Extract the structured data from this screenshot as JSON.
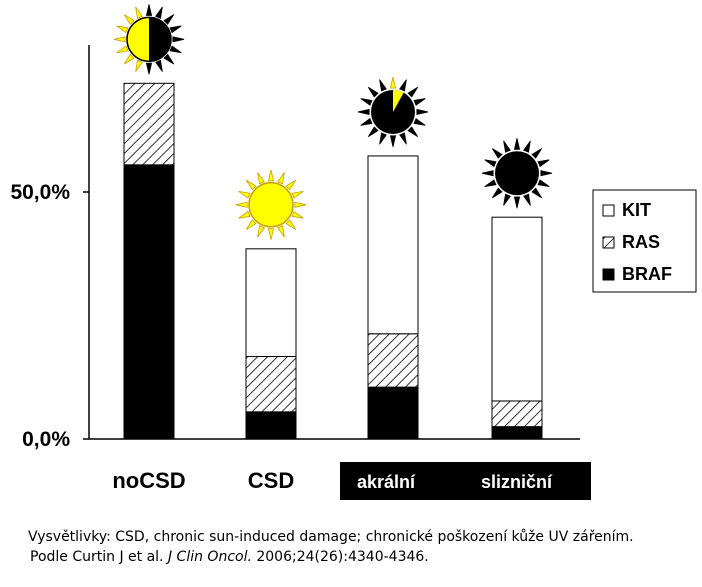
{
  "chart_data": {
    "type": "bar",
    "stacked": true,
    "categories": [
      "noCSD",
      "CSD",
      "akrální",
      "slizniční"
    ],
    "category_label_style": [
      "plain",
      "plain",
      "inverted-box",
      "inverted-box"
    ],
    "series": [
      {
        "name": "BRAF",
        "pattern": "solid-black",
        "values": [
          55.5,
          5.5,
          10.5,
          2.5
        ]
      },
      {
        "name": "RAS",
        "pattern": "hatched",
        "values": [
          16.5,
          11.2,
          10.8,
          5.2
        ]
      },
      {
        "name": "KIT",
        "pattern": "white",
        "values": [
          0,
          21.8,
          36.0,
          37.2
        ]
      }
    ],
    "yticks": [
      "0,0%",
      "50,0%"
    ],
    "ytick_values": [
      0,
      50
    ],
    "ylim": [
      0,
      100
    ],
    "legend": {
      "position": "right",
      "order": [
        "KIT",
        "RAS",
        "BRAF"
      ]
    },
    "grid": false,
    "sun_icons": [
      {
        "category": "noCSD",
        "icon": "sun-icon",
        "sun_fraction": 0.5
      },
      {
        "category": "CSD",
        "icon": "sun-icon",
        "sun_fraction": 1.0
      },
      {
        "category": "akrální",
        "icon": "sun-icon",
        "sun_fraction": 0.08
      },
      {
        "category": "slizniční",
        "icon": "sun-icon",
        "sun_fraction": 0.0
      }
    ],
    "colors": {
      "sun_yellow": "#ffff00",
      "sun_outline": "#c8a000",
      "black": "#000000"
    }
  },
  "footnote": {
    "line1": "Vysvětlivky: CSD, chronic sun-induced damage; chronické poškození kůže UV zářením.",
    "line2_prefix": "Podle Curtin J et al. ",
    "line2_journal": "J Clin Oncol.",
    "line2_suffix": " 2006;24(26):4340-4346."
  }
}
